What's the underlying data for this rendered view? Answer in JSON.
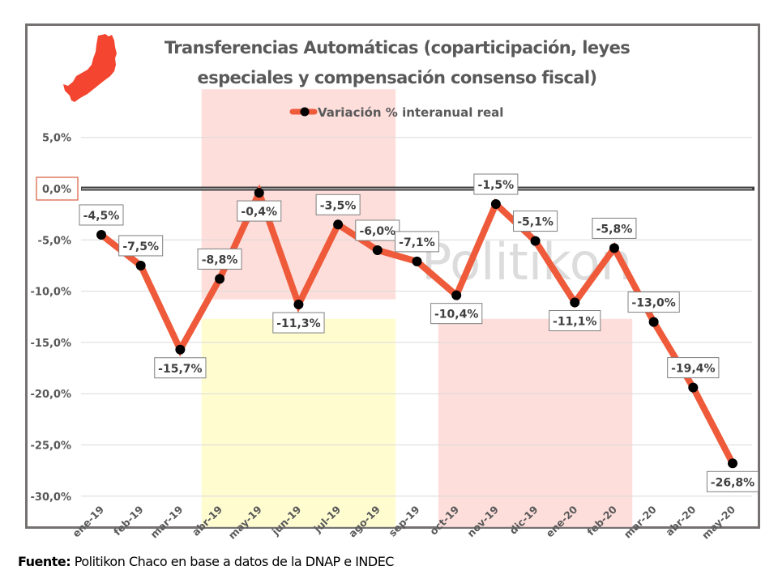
{
  "title_line1": "Transferencias Automáticas (coparticipación, leyes",
  "title_line2": "especiales y compensación consenso fiscal)",
  "source": {
    "label": "Fuente:",
    "text": " Politikon Chaco en base a datos de la DNAP e INDEC"
  },
  "watermark": "Politikon",
  "logo": "chaco-province-map-icon",
  "colors": {
    "line": "#EE5A3A",
    "marker": "#000000",
    "shade_pink": "#FDDEDB",
    "shade_yellow": "#FFFDD0",
    "frame": "#767171",
    "zero_highlight": "#D9593C"
  },
  "chart_data": {
    "type": "line",
    "title": "Transferencias Automáticas (coparticipación, leyes especiales y compensación consenso fiscal)",
    "xlabel": "",
    "ylabel": "",
    "categories": [
      "ene-19",
      "feb-19",
      "mar-19",
      "abr-19",
      "may-19",
      "jun-19",
      "jul-19",
      "ago-19",
      "sep-19",
      "oct-19",
      "nov-19",
      "dic-19",
      "ene-20",
      "feb-20",
      "mar-20",
      "abr-20",
      "may-20"
    ],
    "series": [
      {
        "name": "Variación % interanual real",
        "values": [
          -4.5,
          -7.5,
          -15.7,
          -8.8,
          -0.4,
          -11.3,
          -3.5,
          -6.0,
          -7.1,
          -10.4,
          -1.5,
          -5.1,
          -11.1,
          -5.8,
          -13.0,
          -19.4,
          -26.8
        ],
        "labels": [
          "-4,5%",
          "-7,5%",
          "-15,7%",
          "-8,8%",
          "-0,4%",
          "-11,3%",
          "-3,5%",
          "-6,0%",
          "-7,1%",
          "-10,4%",
          "-1,5%",
          "-5,1%",
          "-11,1%",
          "-5,8%",
          "-13,0%",
          "-19,4%",
          "-26,8%"
        ],
        "label_positions": [
          "above",
          "above",
          "below",
          "above",
          "below",
          "below",
          "above",
          "above",
          "above",
          "below",
          "above",
          "above",
          "below",
          "above",
          "above",
          "above",
          "below"
        ]
      }
    ],
    "ylim": [
      -30,
      5
    ],
    "yticks": [
      5,
      0,
      -5,
      -10,
      -15,
      -20,
      -25,
      -30
    ],
    "ytick_labels": [
      "5,0%",
      "0,0%",
      "-5,0%",
      "-10,0%",
      "-15,0%",
      "-20,0%",
      "-25,0%",
      "-30,0%"
    ],
    "highlighted_ytick": "0,0%",
    "grid": true,
    "legend": {
      "position": "top-center",
      "entries": [
        "Variación % interanual real"
      ]
    },
    "shaded_regions": [
      {
        "color": "pink",
        "x_from": "abr-19",
        "x_to": "ago-19",
        "y_from": -10.8,
        "y_to": 9.7
      },
      {
        "color": "yellow",
        "x_from": "abr-19",
        "x_to": "ago-19",
        "y_from": -33,
        "y_to": -12.7
      },
      {
        "color": "pink",
        "x_from": "oct-19",
        "x_to": "feb-20",
        "y_from": -33,
        "y_to": -12.7
      }
    ]
  }
}
